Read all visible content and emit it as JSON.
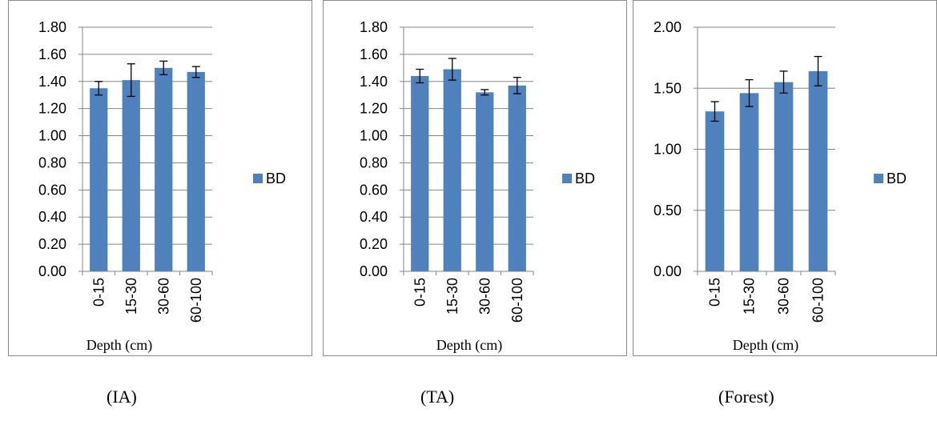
{
  "chart_data": [
    {
      "type": "bar",
      "caption": "(IA)",
      "xlabel": "Depth (cm)",
      "ylabel": "",
      "categories": [
        "0-15",
        "15-30",
        "30-60",
        "60-100"
      ],
      "series": [
        {
          "name": "BD",
          "values": [
            1.35,
            1.41,
            1.5,
            1.47
          ],
          "errors": [
            0.05,
            0.12,
            0.05,
            0.04
          ]
        }
      ],
      "ylim": [
        0,
        1.8
      ],
      "yticks": [
        "0.00",
        "0.20",
        "0.40",
        "0.60",
        "0.80",
        "1.00",
        "1.20",
        "1.40",
        "1.60",
        "1.80"
      ],
      "bar_color": "#4f81bd",
      "legend_position": "right"
    },
    {
      "type": "bar",
      "caption": "(TA)",
      "xlabel": "Depth (cm)",
      "ylabel": "",
      "categories": [
        "0-15",
        "15-30",
        "30-60",
        "60-100"
      ],
      "series": [
        {
          "name": "BD",
          "values": [
            1.44,
            1.49,
            1.32,
            1.37
          ],
          "errors": [
            0.05,
            0.08,
            0.02,
            0.06
          ]
        }
      ],
      "ylim": [
        0,
        1.8
      ],
      "yticks": [
        "0.00",
        "0.20",
        "0.40",
        "0.60",
        "0.80",
        "1.00",
        "1.20",
        "1.40",
        "1.60",
        "1.80"
      ],
      "bar_color": "#4f81bd",
      "legend_position": "right"
    },
    {
      "type": "bar",
      "caption": "(Forest)",
      "xlabel": "Depth (cm)",
      "ylabel": "",
      "categories": [
        "0-15",
        "15-30",
        "30-60",
        "60-100"
      ],
      "series": [
        {
          "name": "BD",
          "values": [
            1.31,
            1.46,
            1.55,
            1.64
          ],
          "errors": [
            0.08,
            0.11,
            0.09,
            0.12
          ]
        }
      ],
      "ylim": [
        0,
        2.0
      ],
      "yticks": [
        "0.00",
        "0.50",
        "1.00",
        "1.50",
        "2.00"
      ],
      "bar_color": "#4f81bd",
      "legend_position": "right"
    }
  ]
}
